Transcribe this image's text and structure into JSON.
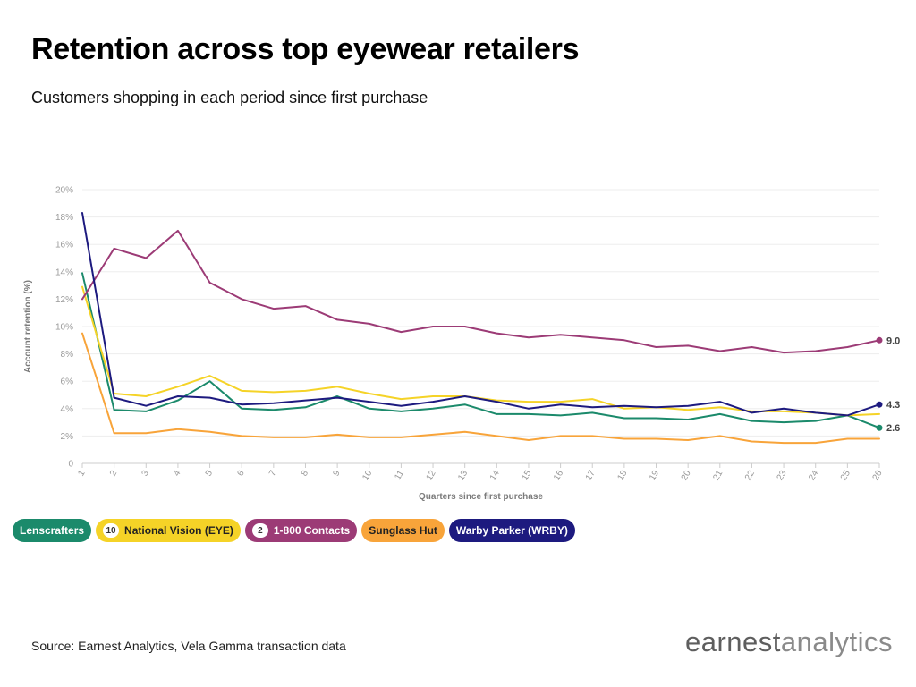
{
  "header": {
    "title": "Retention across top eyewear retailers",
    "subtitle": "Customers shopping in each period since first purchase"
  },
  "footer": {
    "source": "Source: Earnest Analytics, Vela Gamma transaction data",
    "logo_bold": "earnest",
    "logo_light": "analytics"
  },
  "legend": [
    {
      "label": "Lenscrafters",
      "badge": "",
      "color": "#1b8a6b",
      "text_color": "#ffffff"
    },
    {
      "label": "National Vision (EYE)",
      "badge": "10",
      "color": "#f5d327",
      "text_color": "#222222"
    },
    {
      "label": "1-800 Contacts",
      "badge": "2",
      "color": "#9c3b76",
      "text_color": "#ffffff"
    },
    {
      "label": "Sunglass Hut",
      "badge": "",
      "color": "#f8a43a",
      "text_color": "#222222"
    },
    {
      "label": "Warby Parker (WRBY)",
      "badge": "",
      "color": "#1d1a7f",
      "text_color": "#ffffff"
    }
  ],
  "chart_data": {
    "type": "line",
    "title": "Retention across top eyewear retailers",
    "subtitle": "Customers shopping in each period since first purchase",
    "xlabel": "Quarters since first purchase",
    "ylabel": "Account retention (%)",
    "x": [
      1,
      2,
      3,
      4,
      5,
      6,
      7,
      8,
      9,
      10,
      11,
      12,
      13,
      14,
      15,
      16,
      17,
      18,
      19,
      20,
      21,
      22,
      23,
      24,
      25,
      26
    ],
    "ylim": [
      0,
      20
    ],
    "yticks": [
      0,
      2,
      4,
      6,
      8,
      10,
      12,
      14,
      16,
      18,
      20
    ],
    "ytick_labels": [
      "0",
      "2%",
      "4%",
      "6%",
      "8%",
      "10%",
      "12%",
      "14%",
      "16%",
      "18%",
      "20%"
    ],
    "grid": true,
    "legend_position": "bottom-left",
    "series": [
      {
        "name": "Lenscrafters",
        "color": "#1b8a6b",
        "values": [
          13.9,
          3.9,
          3.8,
          4.6,
          6.0,
          4.0,
          3.9,
          4.1,
          4.9,
          4.0,
          3.8,
          4.0,
          4.3,
          3.6,
          3.6,
          3.5,
          3.7,
          3.3,
          3.3,
          3.2,
          3.6,
          3.1,
          3.0,
          3.1,
          3.5,
          2.6
        ],
        "end_label": ""
      },
      {
        "name": "National Vision (EYE)",
        "color": "#f5d327",
        "values": [
          12.9,
          5.1,
          4.9,
          5.6,
          6.4,
          5.3,
          5.2,
          5.3,
          5.6,
          5.1,
          4.7,
          4.9,
          4.9,
          4.6,
          4.5,
          4.5,
          4.7,
          4.0,
          4.1,
          3.9,
          4.1,
          3.8,
          3.8,
          3.7,
          3.5,
          3.6
        ],
        "end_label": ""
      },
      {
        "name": "1-800 Contacts",
        "color": "#9c3b76",
        "values": [
          12.0,
          15.7,
          15.0,
          17.0,
          13.2,
          12.0,
          11.3,
          11.5,
          10.5,
          10.2,
          9.6,
          10.0,
          10.0,
          9.5,
          9.2,
          9.4,
          9.2,
          9.0,
          8.5,
          8.6,
          8.2,
          8.5,
          8.1,
          8.2,
          8.5,
          9.0
        ],
        "end_label": "9.0"
      },
      {
        "name": "Sunglass Hut",
        "color": "#f8a43a",
        "values": [
          9.5,
          2.2,
          2.2,
          2.5,
          2.3,
          2.0,
          1.9,
          1.9,
          2.1,
          1.9,
          1.9,
          2.1,
          2.3,
          2.0,
          1.7,
          2.0,
          2.0,
          1.8,
          1.8,
          1.7,
          2.0,
          1.6,
          1.5,
          1.5,
          1.8,
          1.8
        ],
        "end_label": ""
      },
      {
        "name": "Warby Parker (WRBY)",
        "color": "#1d1a7f",
        "values": [
          18.3,
          4.8,
          4.2,
          4.9,
          4.8,
          4.3,
          4.4,
          4.6,
          4.8,
          4.5,
          4.2,
          4.5,
          4.9,
          4.5,
          4.0,
          4.3,
          4.1,
          4.2,
          4.1,
          4.2,
          4.5,
          3.7,
          4.0,
          3.7,
          3.5,
          4.3
        ],
        "end_label": "4.3"
      }
    ],
    "extra_end_labels": [
      {
        "series": "Lenscrafters",
        "label": "2.6"
      }
    ]
  }
}
